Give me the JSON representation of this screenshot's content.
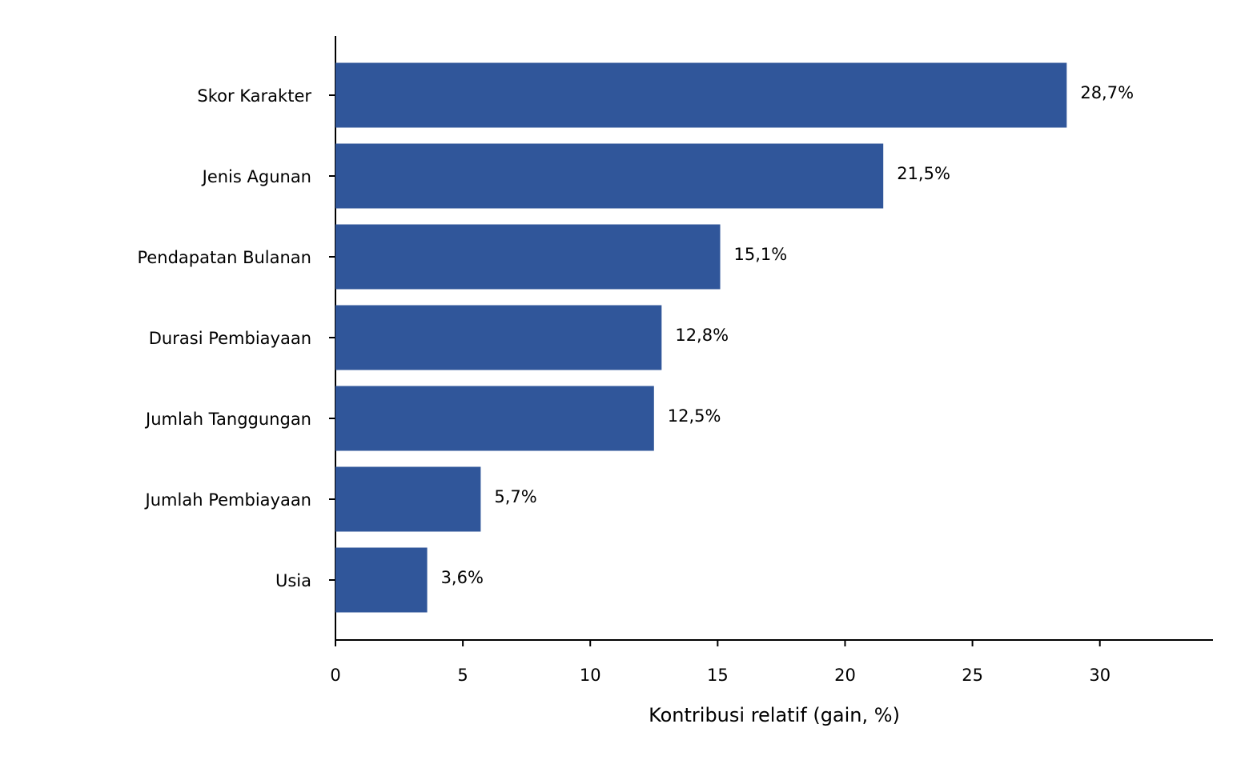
{
  "chart_data": {
    "type": "bar",
    "orientation": "horizontal",
    "xlabel": "Kontribusi relatif (gain, %)",
    "categories": [
      "Skor Karakter",
      "Jenis Agunan",
      "Pendapatan Bulanan",
      "Durasi Pembiayaan",
      "Jumlah Tanggungan",
      "Jumlah Pembiayaan",
      "Usia"
    ],
    "values": [
      28.7,
      21.5,
      15.1,
      12.8,
      12.5,
      5.7,
      3.6
    ],
    "value_labels": [
      "28,7%",
      "21,5%",
      "15,1%",
      "12,8%",
      "12,5%",
      "5,7%",
      "3,6%"
    ],
    "color": "#30569a",
    "xlim": [
      0,
      34.44
    ],
    "xticks": [
      0,
      5,
      10,
      15,
      20,
      25,
      30
    ],
    "grid": false
  }
}
